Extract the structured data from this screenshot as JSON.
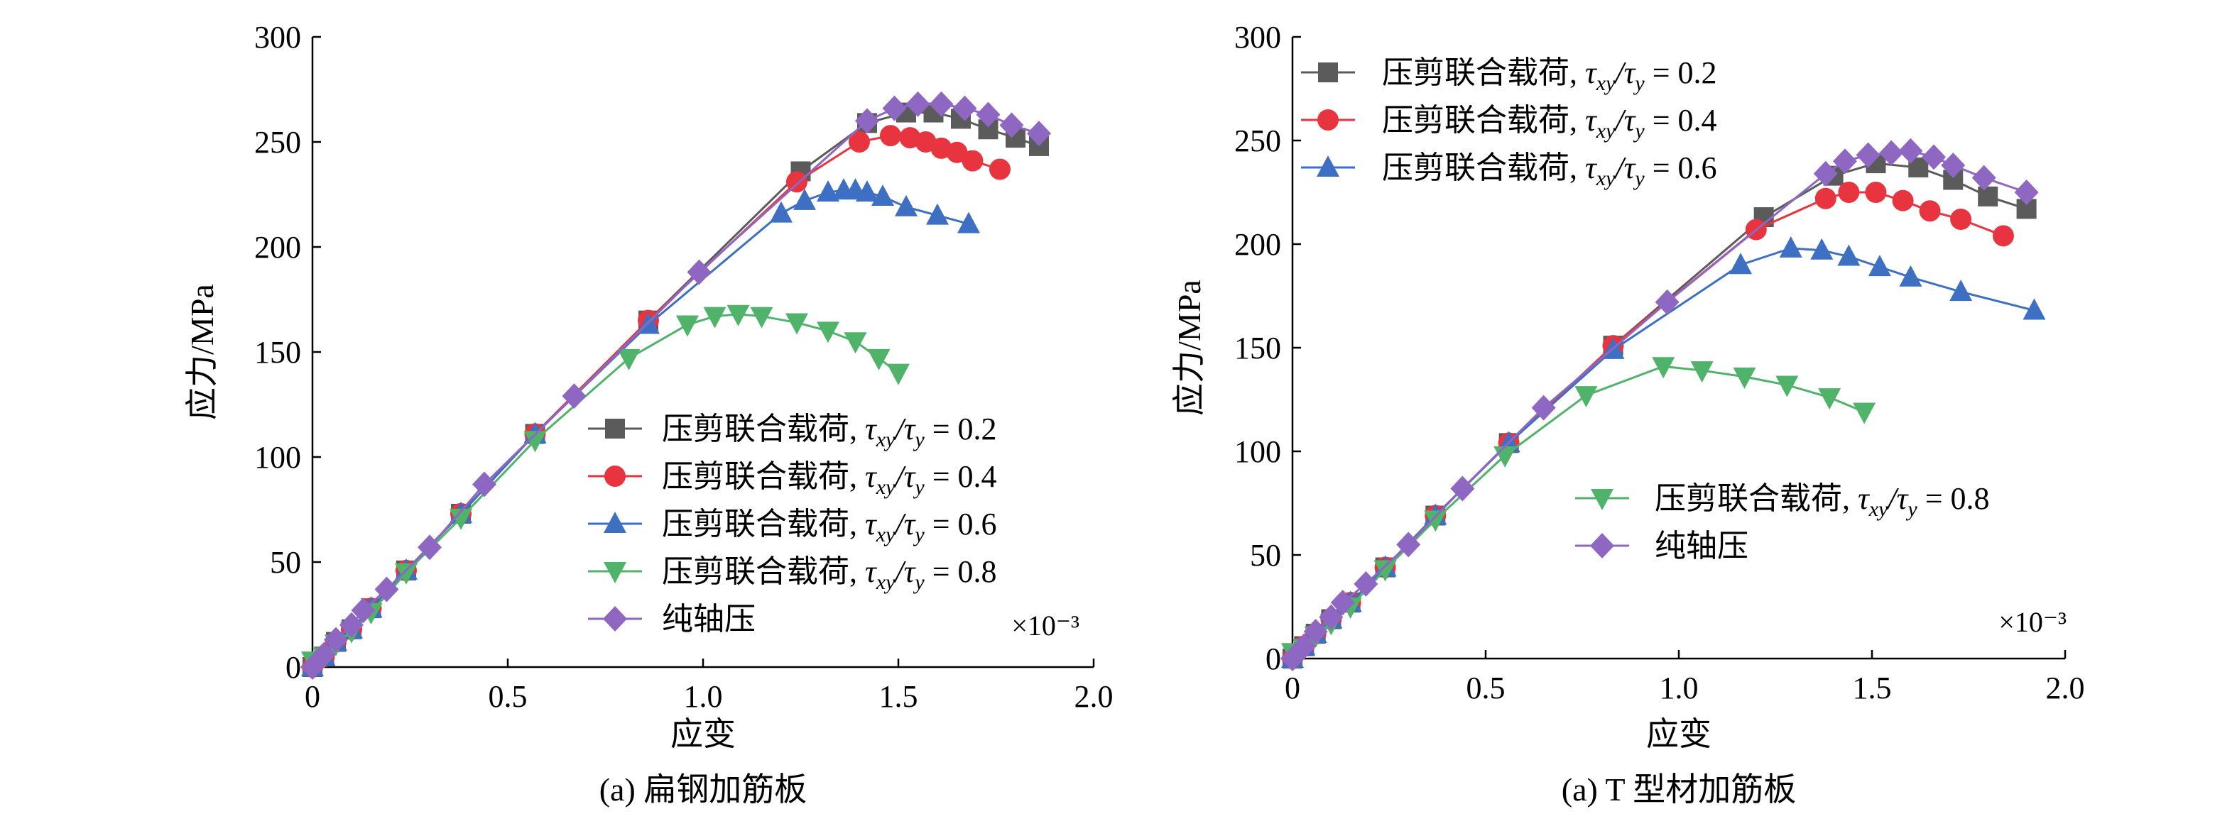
{
  "chart_data": [
    {
      "type": "line",
      "caption": "(a) 扁钢加筋板",
      "xlabel": "应变",
      "ylabel": "应力/MPa",
      "x_multiplier": "×10⁻³",
      "xlim": [
        0,
        2.0
      ],
      "ylim": [
        0,
        300
      ],
      "xticks": [
        "0",
        "0.5",
        "1.0",
        "1.5",
        "2.0"
      ],
      "yticks": [
        "0",
        "50",
        "100",
        "150",
        "200",
        "250",
        "300"
      ],
      "legend_position": "bottom-right",
      "series": [
        {
          "name": "压剪联合载荷, τxy/τy = 0.2",
          "legend_prefix": "压剪联合载荷,",
          "ratio": "0.2",
          "color": "#5b5b5b",
          "marker": "square",
          "x": [
            0,
            0.03,
            0.06,
            0.1,
            0.15,
            0.24,
            0.38,
            0.57,
            0.86,
            1.25,
            1.42,
            1.52,
            1.59,
            1.66,
            1.73,
            1.8,
            1.86
          ],
          "y": [
            0,
            5,
            12,
            18,
            28,
            46,
            73,
            111,
            165,
            236,
            259,
            264,
            264,
            261,
            256,
            252,
            248
          ]
        },
        {
          "name": "压剪联合载荷, τxy/τy = 0.4",
          "legend_prefix": "压剪联合载荷,",
          "ratio": "0.4",
          "color": "#e8343f",
          "marker": "circle",
          "x": [
            0,
            0.03,
            0.06,
            0.1,
            0.15,
            0.24,
            0.38,
            0.57,
            0.86,
            1.24,
            1.4,
            1.48,
            1.53,
            1.57,
            1.61,
            1.65,
            1.69,
            1.76
          ],
          "y": [
            0,
            5,
            12,
            18,
            28,
            46,
            73,
            111,
            165,
            231,
            250,
            253,
            252,
            250,
            247,
            245,
            241,
            237
          ]
        },
        {
          "name": "压剪联合载荷, τxy/τy = 0.6",
          "legend_prefix": "压剪联合载荷,",
          "ratio": "0.6",
          "color": "#3d6fc2",
          "marker": "triangle-up",
          "x": [
            0,
            0.03,
            0.06,
            0.1,
            0.15,
            0.24,
            0.38,
            0.57,
            0.86,
            1.2,
            1.26,
            1.32,
            1.36,
            1.39,
            1.42,
            1.46,
            1.52,
            1.6,
            1.68
          ],
          "y": [
            0,
            5,
            12,
            18,
            28,
            46,
            73,
            111,
            163,
            216,
            222,
            226,
            227,
            227,
            226,
            224,
            219,
            215,
            211
          ]
        },
        {
          "name": "压剪联合载荷, τxy/τy = 0.8",
          "legend_prefix": "压剪联合载荷,",
          "ratio": "0.8",
          "color": "#4fb36a",
          "marker": "triangle-down",
          "x": [
            0,
            0.03,
            0.06,
            0.1,
            0.15,
            0.24,
            0.38,
            0.57,
            0.81,
            0.96,
            1.03,
            1.09,
            1.15,
            1.24,
            1.32,
            1.39,
            1.45,
            1.5
          ],
          "y": [
            3,
            5,
            11,
            17,
            26,
            45,
            71,
            108,
            147,
            163,
            167,
            168,
            167,
            164,
            160,
            155,
            147,
            140
          ]
        },
        {
          "name": "纯轴压",
          "legend_prefix": "纯轴压",
          "ratio": "",
          "color": "#8e67c2",
          "marker": "diamond",
          "x": [
            0,
            0.03,
            0.06,
            0.1,
            0.13,
            0.19,
            0.3,
            0.44,
            0.67,
            0.99,
            1.42,
            1.49,
            1.55,
            1.61,
            1.67,
            1.73,
            1.79,
            1.86
          ],
          "y": [
            0,
            6,
            13,
            20,
            27,
            37,
            57,
            87,
            129,
            188,
            260,
            266,
            268,
            268,
            266,
            263,
            258,
            254
          ]
        }
      ]
    },
    {
      "type": "line",
      "caption": "(a) T 型材加筋板",
      "xlabel": "应变",
      "ylabel": "应力/MPa",
      "x_multiplier": "×10⁻³",
      "xlim": [
        0,
        2.0
      ],
      "ylim": [
        0,
        300
      ],
      "xticks": [
        "0",
        "0.5",
        "1.0",
        "1.5",
        "2.0"
      ],
      "yticks": [
        "0",
        "50",
        "100",
        "150",
        "200",
        "250",
        "300"
      ],
      "legend_position": "top-left and lower-right",
      "series": [
        {
          "name": "压剪联合载荷, τxy/τy = 0.2",
          "legend_prefix": "压剪联合载荷,",
          "ratio": "0.2",
          "color": "#5b5b5b",
          "marker": "square",
          "x": [
            0,
            0.03,
            0.06,
            0.1,
            0.15,
            0.24,
            0.37,
            0.56,
            0.83,
            1.22,
            1.4,
            1.51,
            1.62,
            1.71,
            1.8,
            1.9
          ],
          "y": [
            0,
            6,
            12,
            19,
            27,
            44,
            69,
            104,
            151,
            213,
            233,
            239,
            237,
            231,
            223,
            217
          ]
        },
        {
          "name": "压剪联合载荷, τxy/τy = 0.4",
          "legend_prefix": "压剪联合载荷,",
          "ratio": "0.4",
          "color": "#e8343f",
          "marker": "circle",
          "x": [
            0,
            0.03,
            0.06,
            0.1,
            0.15,
            0.24,
            0.37,
            0.56,
            0.83,
            1.2,
            1.38,
            1.44,
            1.51,
            1.58,
            1.65,
            1.73,
            1.84
          ],
          "y": [
            0,
            6,
            12,
            19,
            27,
            44,
            69,
            104,
            151,
            207,
            222,
            225,
            225,
            221,
            216,
            212,
            204
          ]
        },
        {
          "name": "压剪联合载荷, τxy/τy = 0.6",
          "legend_prefix": "压剪联合载荷,",
          "ratio": "0.6",
          "color": "#3d6fc2",
          "marker": "triangle-up",
          "x": [
            0,
            0.03,
            0.06,
            0.1,
            0.15,
            0.24,
            0.37,
            0.56,
            0.83,
            1.16,
            1.29,
            1.37,
            1.44,
            1.52,
            1.6,
            1.73,
            1.92
          ],
          "y": [
            0,
            6,
            12,
            19,
            27,
            44,
            69,
            104,
            149,
            190,
            198,
            197,
            194,
            189,
            184,
            177,
            168
          ]
        },
        {
          "name": "压剪联合载荷, τxy/τy = 0.8",
          "legend_prefix": "压剪联合载荷,",
          "ratio": "0.8",
          "color": "#4fb36a",
          "marker": "triangle-down",
          "x": [
            0,
            0.03,
            0.06,
            0.1,
            0.15,
            0.24,
            0.37,
            0.55,
            0.76,
            0.96,
            1.06,
            1.17,
            1.28,
            1.39,
            1.48
          ],
          "y": [
            3,
            5,
            11,
            17,
            25,
            43,
            67,
            98,
            127,
            141,
            139,
            136,
            132,
            126,
            119
          ]
        },
        {
          "name": "纯轴压",
          "legend_prefix": "纯轴压",
          "ratio": "",
          "color": "#8e67c2",
          "marker": "diamond",
          "x": [
            0,
            0.03,
            0.06,
            0.1,
            0.13,
            0.19,
            0.3,
            0.44,
            0.65,
            0.97,
            1.38,
            1.43,
            1.49,
            1.55,
            1.6,
            1.66,
            1.71,
            1.79,
            1.9
          ],
          "y": [
            0,
            6,
            13,
            20,
            27,
            36,
            55,
            82,
            121,
            172,
            234,
            240,
            243,
            244,
            245,
            242,
            238,
            232,
            225
          ]
        }
      ]
    }
  ]
}
